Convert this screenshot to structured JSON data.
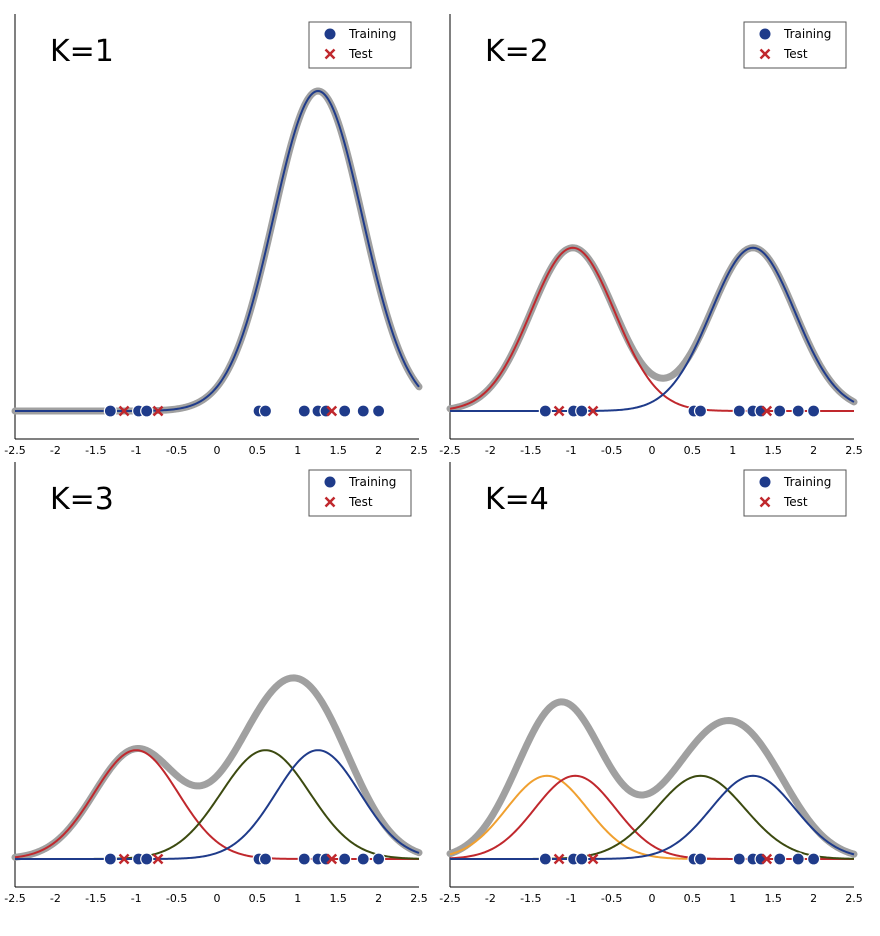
{
  "colors": {
    "mixture": "#a0a0a0",
    "training": "#1f3b8a",
    "test": "#c0282d",
    "components": [
      "#c0282d",
      "#1f3b8a",
      "#3c4a10",
      "#f0a030"
    ]
  },
  "legend": {
    "training_label": "Training",
    "test_label": "Test"
  },
  "x_tick_labels": [
    "-2.5",
    "-2",
    "-1.5",
    "-1",
    "-0.5",
    "0",
    "0.5",
    "1",
    "1.5",
    "2",
    "2.5"
  ],
  "chart_data": [
    {
      "type": "line",
      "title": "K=1",
      "xlim": [
        -2.5,
        2.5
      ],
      "x_ticks": [
        -2.5,
        -2,
        -1.5,
        -1,
        -0.5,
        0,
        0.5,
        1,
        1.5,
        2,
        2.5
      ],
      "grid": false,
      "legend_position": "top-right",
      "components": [
        {
          "mean": 1.25,
          "sd": 0.55,
          "height": 1.0,
          "color_index": 1
        }
      ],
      "training_x": [
        -1.32,
        -0.97,
        -0.87,
        0.52,
        0.6,
        1.08,
        1.25,
        1.35,
        1.58,
        1.81,
        2.0
      ],
      "test_x": [
        -1.15,
        -0.73,
        1.42
      ]
    },
    {
      "type": "line",
      "title": "K=2",
      "xlim": [
        -2.5,
        2.5
      ],
      "x_ticks": [
        -2.5,
        -2,
        -1.5,
        -1,
        -0.5,
        0,
        0.5,
        1,
        1.5,
        2,
        2.5
      ],
      "grid": false,
      "legend_position": "top-right",
      "components": [
        {
          "mean": -0.98,
          "sd": 0.52,
          "height": 0.51,
          "color_index": 0
        },
        {
          "mean": 1.25,
          "sd": 0.52,
          "height": 0.51,
          "color_index": 1
        }
      ],
      "training_x": [
        -1.32,
        -0.97,
        -0.87,
        0.52,
        0.6,
        1.08,
        1.25,
        1.35,
        1.58,
        1.81,
        2.0
      ],
      "test_x": [
        -1.15,
        -0.73,
        1.42
      ]
    },
    {
      "type": "line",
      "title": "K=3",
      "xlim": [
        -2.5,
        2.5
      ],
      "x_ticks": [
        -2.5,
        -2,
        -1.5,
        -1,
        -0.5,
        0,
        0.5,
        1,
        1.5,
        2,
        2.5
      ],
      "grid": false,
      "legend_position": "top-right",
      "components": [
        {
          "mean": -1.0,
          "sd": 0.52,
          "height": 0.34,
          "color_index": 0
        },
        {
          "mean": 0.6,
          "sd": 0.55,
          "height": 0.34,
          "color_index": 2
        },
        {
          "mean": 1.25,
          "sd": 0.52,
          "height": 0.34,
          "color_index": 1
        }
      ],
      "training_x": [
        -1.32,
        -0.97,
        -0.87,
        0.52,
        0.6,
        1.08,
        1.25,
        1.35,
        1.58,
        1.81,
        2.0
      ],
      "test_x": [
        -1.15,
        -0.73,
        1.42
      ]
    },
    {
      "type": "line",
      "title": "K=4",
      "xlim": [
        -2.5,
        2.5
      ],
      "x_ticks": [
        -2.5,
        -2,
        -1.5,
        -1,
        -0.5,
        0,
        0.5,
        1,
        1.5,
        2,
        2.5
      ],
      "grid": false,
      "legend_position": "top-right",
      "components": [
        {
          "mean": -1.3,
          "sd": 0.5,
          "height": 0.26,
          "color_index": 3
        },
        {
          "mean": -0.95,
          "sd": 0.5,
          "height": 0.26,
          "color_index": 0
        },
        {
          "mean": 0.6,
          "sd": 0.55,
          "height": 0.26,
          "color_index": 2
        },
        {
          "mean": 1.25,
          "sd": 0.52,
          "height": 0.26,
          "color_index": 1
        }
      ],
      "training_x": [
        -1.32,
        -0.97,
        -0.87,
        0.52,
        0.6,
        1.08,
        1.25,
        1.35,
        1.58,
        1.81,
        2.0
      ],
      "test_x": [
        -1.15,
        -0.73,
        1.42
      ]
    }
  ]
}
